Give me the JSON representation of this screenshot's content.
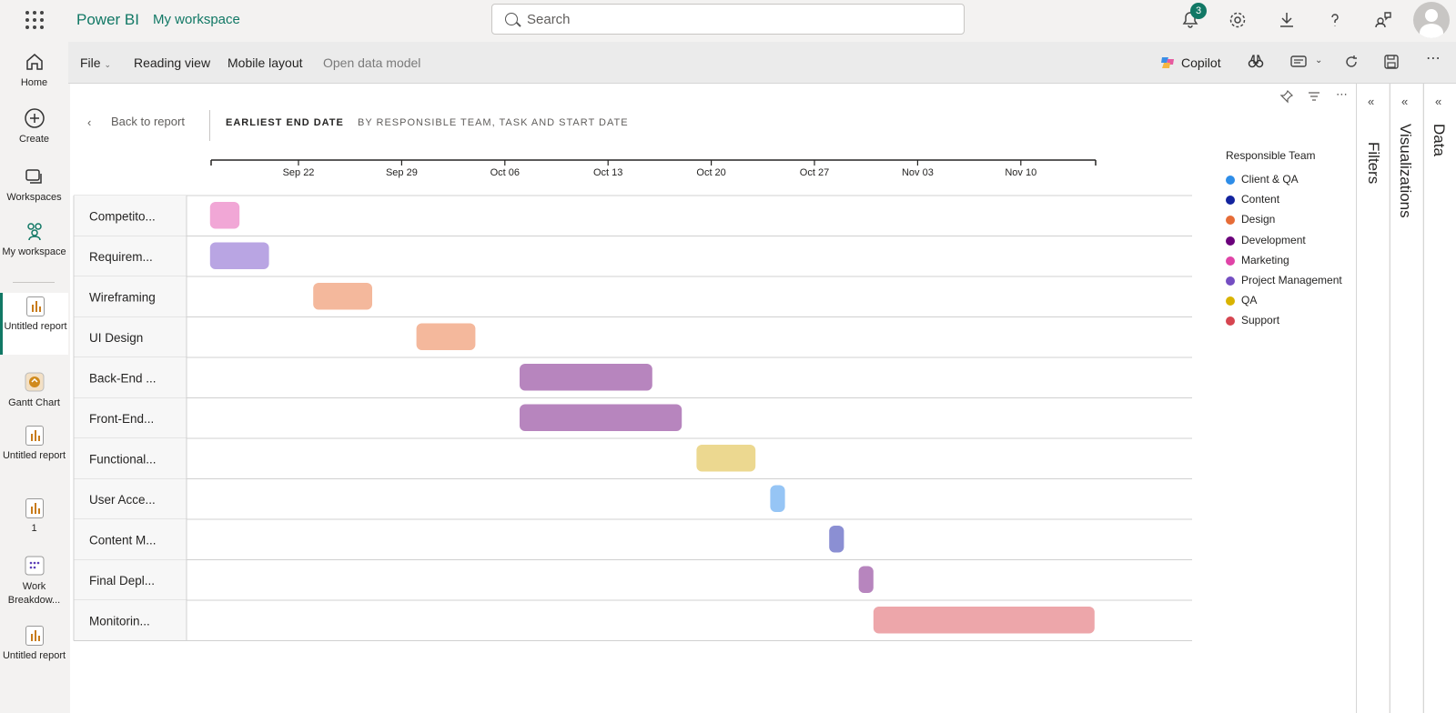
{
  "app": {
    "brand": "Power BI",
    "workspace": "My workspace"
  },
  "search": {
    "placeholder": "Search"
  },
  "notifications": {
    "count": "3"
  },
  "nav": {
    "home": "Home",
    "create": "Create",
    "workspaces": "Workspaces",
    "my_workspace": "My workspace",
    "items": [
      "Untitled report",
      "Gantt Chart",
      "Untitled report",
      "1",
      "Work Breakdow...",
      "Untitled report"
    ]
  },
  "toolbar": {
    "file": "File",
    "reading_view": "Reading view",
    "mobile_layout": "Mobile layout",
    "open_data_model": "Open data model",
    "copilot": "Copilot"
  },
  "panes": {
    "filters": "Filters",
    "visualizations": "Visualizations",
    "data": "Data"
  },
  "visual": {
    "back": "Back to report",
    "title": "EARLIEST END DATE",
    "subtitle": "BY RESPONSIBLE TEAM, TASK AND START DATE"
  },
  "legend": {
    "title": "Responsible Team",
    "items": [
      {
        "label": "Client & QA",
        "color": "#2e8de8"
      },
      {
        "label": "Content",
        "color": "#12239e"
      },
      {
        "label": "Design",
        "color": "#e66c37"
      },
      {
        "label": "Development",
        "color": "#6b007b"
      },
      {
        "label": "Marketing",
        "color": "#e044a7"
      },
      {
        "label": "Project Management",
        "color": "#744ec2"
      },
      {
        "label": "QA",
        "color": "#d9b300"
      },
      {
        "label": "Support",
        "color": "#d64550"
      }
    ]
  },
  "chart_data": {
    "type": "gantt",
    "x_ticks": [
      "Sep 22",
      "Sep 29",
      "Oct 06",
      "Oct 13",
      "Oct 20",
      "Oct 27",
      "Nov 03",
      "Nov 10"
    ],
    "tasks": [
      {
        "label": "Competito...",
        "start": "2024-09-16",
        "end": "2024-09-18",
        "team": "Marketing",
        "color": "#f1a7d6"
      },
      {
        "label": "Requirem...",
        "start": "2024-09-16",
        "end": "2024-09-20",
        "team": "Project Management",
        "color": "#b9a5e3"
      },
      {
        "label": "Wireframing",
        "start": "2024-09-23",
        "end": "2024-09-27",
        "team": "Design",
        "color": "#f4b89c"
      },
      {
        "label": "UI Design",
        "start": "2024-09-30",
        "end": "2024-10-04",
        "team": "Design",
        "color": "#f4b89c"
      },
      {
        "label": "Back-End ...",
        "start": "2024-10-07",
        "end": "2024-10-16",
        "team": "Development",
        "color": "#b785be"
      },
      {
        "label": "Front-End...",
        "start": "2024-10-07",
        "end": "2024-10-18",
        "team": "Development",
        "color": "#b785be"
      },
      {
        "label": "Functional...",
        "start": "2024-10-19",
        "end": "2024-10-23",
        "team": "QA",
        "color": "#ecd890"
      },
      {
        "label": "User Acce...",
        "start": "2024-10-24",
        "end": "2024-10-25",
        "team": "Client & QA",
        "color": "#96c5f5"
      },
      {
        "label": "Content M...",
        "start": "2024-10-28",
        "end": "2024-10-29",
        "team": "Content",
        "color": "#8b8fd3"
      },
      {
        "label": "Final Depl...",
        "start": "2024-10-30",
        "end": "2024-10-31",
        "team": "Development",
        "color": "#b785be"
      },
      {
        "label": "Monitorin...",
        "start": "2024-10-31",
        "end": "2024-11-15",
        "team": "Support",
        "color": "#eda6aa"
      }
    ]
  }
}
